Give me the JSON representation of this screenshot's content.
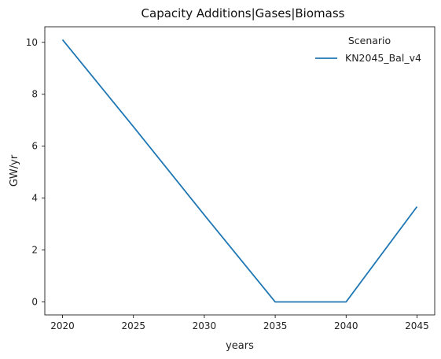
{
  "chart_data": {
    "type": "line",
    "title": "Capacity Additions|Gases|Biomass",
    "xlabel": "years",
    "ylabel": "GW/yr",
    "x": [
      2020,
      2025,
      2030,
      2035,
      2040,
      2045
    ],
    "xticks": [
      2020,
      2025,
      2030,
      2035,
      2040,
      2045
    ],
    "yticks": [
      0,
      2,
      4,
      6,
      8,
      10
    ],
    "xlim": [
      2018.75,
      2046.25
    ],
    "ylim": [
      -0.5,
      10.6
    ],
    "grid": false,
    "legend": {
      "title": "Scenario",
      "placement": "top-right"
    },
    "series": [
      {
        "name": "KN2045_Bal_v4",
        "color": "#1f77b4",
        "values": [
          10.1,
          6.75,
          3.35,
          0.0,
          0.0,
          3.67
        ]
      }
    ]
  }
}
